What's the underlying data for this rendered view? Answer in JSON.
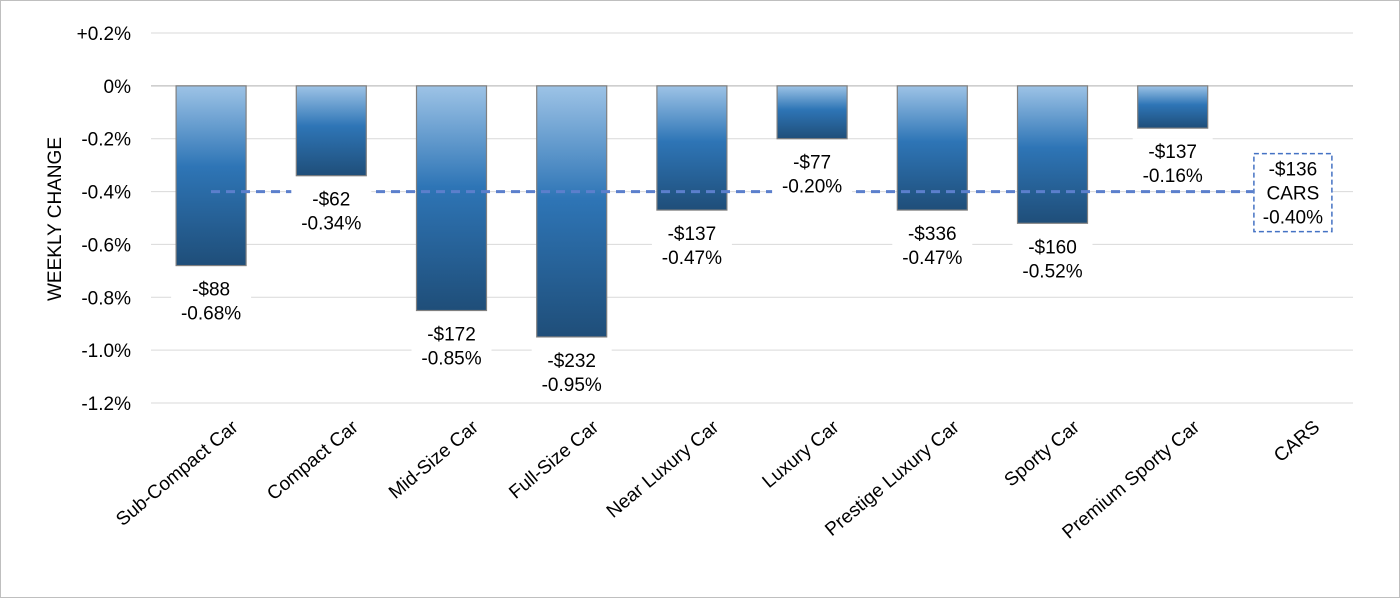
{
  "chart_data": {
    "type": "bar",
    "ylabel": "WEEKLY CHANGE",
    "ylim": [
      -1.2,
      0.2
    ],
    "yticks": [
      {
        "value": 0.2,
        "label": "+0.2%"
      },
      {
        "value": 0.0,
        "label": "0%"
      },
      {
        "value": -0.2,
        "label": "-0.2%"
      },
      {
        "value": -0.4,
        "label": "-0.4%"
      },
      {
        "value": -0.6,
        "label": "-0.6%"
      },
      {
        "value": -0.8,
        "label": "-0.8%"
      },
      {
        "value": -1.0,
        "label": "-1.0%"
      },
      {
        "value": -1.2,
        "label": "-1.2%"
      }
    ],
    "grid": true,
    "categories": [
      "Sub-Compact Car",
      "Compact Car",
      "Mid-Size Car",
      "Full-Size Car",
      "Near Luxury Car",
      "Luxury Car",
      "Prestige Luxury Car",
      "Sporty Car",
      "Premium Sporty Car",
      "CARS"
    ],
    "values": [
      -0.68,
      -0.34,
      -0.85,
      -0.95,
      -0.47,
      -0.2,
      -0.47,
      -0.52,
      -0.16,
      null
    ],
    "dollar_labels": [
      "-$88",
      "-$62",
      "-$172",
      "-$232",
      "-$137",
      "-$77",
      "-$336",
      "-$160",
      "-$137"
    ],
    "percent_labels": [
      "-0.68%",
      "-0.34%",
      "-0.85%",
      "-0.95%",
      "-0.47%",
      "-0.20%",
      "-0.47%",
      "-0.52%",
      "-0.16%"
    ],
    "reference": {
      "value": -0.4,
      "lines": [
        "-$136",
        "CARS",
        "-0.40%"
      ]
    },
    "colors": {
      "bar_top": "#9dc3e6",
      "bar_mid": "#2e75b6",
      "bar_bottom": "#1f4e79",
      "reference_line": "#5b7fcc",
      "callout_border": "#4472c4"
    }
  }
}
